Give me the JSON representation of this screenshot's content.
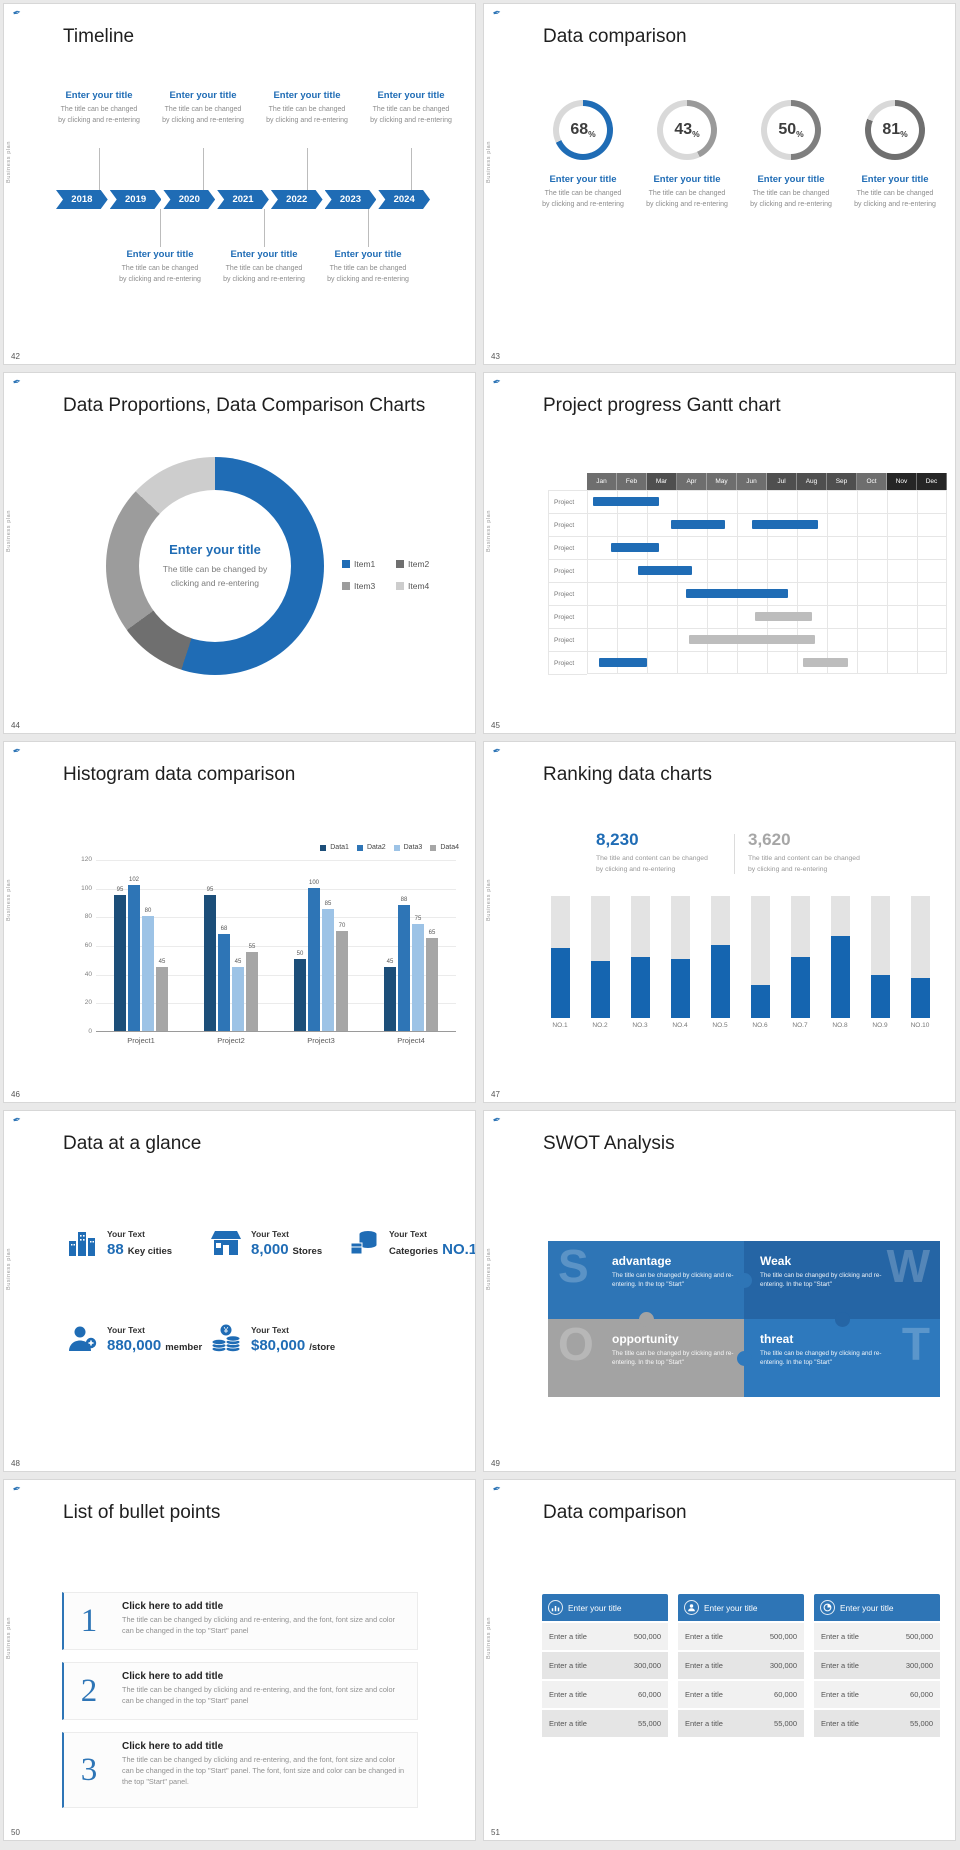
{
  "page": {
    "vertical_label": "Business plan",
    "logo_glyph": "✒",
    "accent": "#1f6cb5"
  },
  "slides": {
    "timeline": {
      "number": "42",
      "title": "Timeline",
      "entry_title": "Enter your title",
      "entry_line1": "The title can be changed",
      "entry_line2": "by clicking and re-entering",
      "years": [
        "2018",
        "2019",
        "2020",
        "2021",
        "2022",
        "2023",
        "2024"
      ]
    },
    "data_comparison": {
      "number": "43",
      "title": "Data comparison",
      "entry_title": "Enter your title",
      "entry_line1": "The title can be changed",
      "entry_line2": "by clicking and re-entering",
      "chart_data": {
        "type": "ring-progress",
        "unit": "%",
        "values": [
          68,
          43,
          50,
          81
        ],
        "ring_colors": [
          "#1f6cb5",
          "#9a9a9a",
          "#7f7f7f",
          "#6f6f6f"
        ],
        "track_color": "#d9d9d9"
      }
    },
    "proportions": {
      "number": "44",
      "title": "Data Proportions, Data Comparison Charts",
      "center_title": "Enter your title",
      "center_line1": "The title can be changed by",
      "center_line2": "clicking and re-entering",
      "chart_data": {
        "type": "donut",
        "labels": [
          "Item1",
          "Item2",
          "Item3",
          "Item4"
        ],
        "values": [
          55,
          10,
          22,
          13
        ],
        "colors": [
          "#1f6cb5",
          "#6f6f6f",
          "#9c9c9c",
          "#cdcdcd"
        ]
      }
    },
    "gantt": {
      "number": "45",
      "title": "Project progress Gantt chart",
      "chart_data": {
        "type": "gantt",
        "months": [
          "Jan",
          "Feb",
          "Mar",
          "Apr",
          "May",
          "Jun",
          "Jul",
          "Aug",
          "Sep",
          "Oct",
          "Nov",
          "Dec"
        ],
        "month_colors": [
          "#6e6e6e",
          "#6e6e6e",
          "#4f4f4f",
          "#6e6e6e",
          "#6e6e6e",
          "#6e6e6e",
          "#4f4f4f",
          "#4f4f4f",
          "#4f4f4f",
          "#6e6e6e",
          "#262626",
          "#262626"
        ],
        "row_label": "Project",
        "row_count": 8,
        "bar_colors": {
          "blue": "#1f6cb5",
          "gray": "#bdbdbd"
        },
        "bars": [
          {
            "row": 0,
            "start": 0.2,
            "span": 2.2,
            "color": "blue"
          },
          {
            "row": 1,
            "start": 2.8,
            "span": 1.8,
            "color": "blue"
          },
          {
            "row": 1,
            "start": 5.5,
            "span": 2.2,
            "color": "blue"
          },
          {
            "row": 2,
            "start": 0.8,
            "span": 1.6,
            "color": "blue"
          },
          {
            "row": 3,
            "start": 1.7,
            "span": 1.8,
            "color": "blue"
          },
          {
            "row": 4,
            "start": 3.3,
            "span": 3.4,
            "color": "blue"
          },
          {
            "row": 5,
            "start": 5.6,
            "span": 1.9,
            "color": "gray"
          },
          {
            "row": 6,
            "start": 3.4,
            "span": 4.2,
            "color": "gray"
          },
          {
            "row": 7,
            "start": 0.4,
            "span": 1.6,
            "color": "blue"
          },
          {
            "row": 7,
            "start": 7.2,
            "span": 1.5,
            "color": "gray"
          }
        ]
      }
    },
    "histogram": {
      "number": "46",
      "title": "Histogram data comparison",
      "chart_data": {
        "type": "bar",
        "categories": [
          "Project1",
          "Project2",
          "Project3",
          "Project4"
        ],
        "series": [
          {
            "name": "Data1",
            "color": "#1c4e79",
            "values": [
              95,
              95,
              50,
              45
            ]
          },
          {
            "name": "Data2",
            "color": "#2e75b6",
            "values": [
              102,
              68,
              100,
              88
            ]
          },
          {
            "name": "Data3",
            "color": "#9dc3e6",
            "values": [
              80,
              45,
              85,
              75
            ]
          },
          {
            "name": "Data4",
            "color": "#a6a6a6",
            "values": [
              45,
              55,
              70,
              65
            ]
          }
        ],
        "ylim": [
          0,
          120
        ],
        "yticks": [
          0,
          20,
          40,
          60,
          80,
          100,
          120
        ],
        "legend_position": "top-right"
      }
    },
    "ranking": {
      "number": "47",
      "title": "Ranking data charts",
      "stat_primary": {
        "value": "8,230",
        "line1": "The title and content can be changed",
        "line2": "by clicking and re-entering"
      },
      "stat_secondary": {
        "value": "3,620",
        "line1": "The title and content can be changed",
        "line2": "by clicking and re-entering"
      },
      "chart_data": {
        "type": "bar",
        "categories": [
          "NO.1",
          "NO.2",
          "NO.3",
          "NO.4",
          "NO.5",
          "NO.6",
          "NO.7",
          "NO.8",
          "NO.9",
          "NO.10"
        ],
        "values": [
          57,
          47,
          50,
          48,
          60,
          27,
          50,
          67,
          35,
          33
        ],
        "ymax": 100,
        "bar_color": "#1565b0",
        "track_color": "#e3e3e3"
      }
    },
    "glance": {
      "number": "48",
      "title": "Data at a glance",
      "items": [
        {
          "icon": "city-buildings-icon",
          "label": "Your Text",
          "big": "88",
          "small": "Key cities"
        },
        {
          "icon": "store-icon",
          "label": "Your Text",
          "big": "8,000",
          "small": "Stores"
        },
        {
          "icon": "categories-boxes-icon",
          "label": "Your Text",
          "big": "NO.1",
          "small": "Categories"
        },
        {
          "icon": "member-person-icon",
          "label": "Your Text",
          "big": "880,000",
          "small": "member"
        },
        {
          "icon": "money-coins-icon",
          "label": "Your Text",
          "big": "$80,000",
          "small": "/store"
        }
      ]
    },
    "swot": {
      "number": "49",
      "title": "SWOT Analysis",
      "pieces": [
        {
          "letter": "S",
          "heading": "advantage",
          "text": "The title can be changed by clicking and re-entering. In the top \"Start\"",
          "color": "#2e75b6"
        },
        {
          "letter": "W",
          "heading": "Weak",
          "text": "The title can be changed by clicking and re-entering. In the top \"Start\"",
          "color": "#2565a5"
        },
        {
          "letter": "O",
          "heading": "opportunity",
          "text": "The title can be changed by clicking and re-entering. In the top \"Start\"",
          "color": "#a3a3a3"
        },
        {
          "letter": "T",
          "heading": "threat",
          "text": "The title can be changed by clicking and re-entering. In the top \"Start\"",
          "color": "#2e79bd"
        }
      ]
    },
    "bullets": {
      "number": "50",
      "title": "List of bullet points",
      "items": [
        {
          "num": "1",
          "heading": "Click here to add title",
          "body": "The title can be changed by clicking and re-entering, and the font, font size and color can be changed in the top \"Start\" panel"
        },
        {
          "num": "2",
          "heading": "Click here to add title",
          "body": "The title can be changed by clicking and re-entering, and the font, font size and color can be changed in the top \"Start\" panel"
        },
        {
          "num": "3",
          "heading": "Click here to add title",
          "body": "The title can be changed by clicking and re-entering, and the font, font size and color can be changed in the top \"Start\" panel. The font, font size and color can be changed in the top \"Start\" panel."
        }
      ]
    },
    "tables": {
      "number": "51",
      "title": "Data comparison",
      "header": "Enter your title",
      "table_icons": [
        "clipboard-person-icon",
        "user-icon",
        "pie-chart-icon"
      ],
      "rows": [
        {
          "label": "Enter a title",
          "value": "500,000"
        },
        {
          "label": "Enter a title",
          "value": "300,000"
        },
        {
          "label": "Enter a title",
          "value": "60,000"
        },
        {
          "label": "Enter a title",
          "value": "55,000"
        }
      ]
    }
  }
}
